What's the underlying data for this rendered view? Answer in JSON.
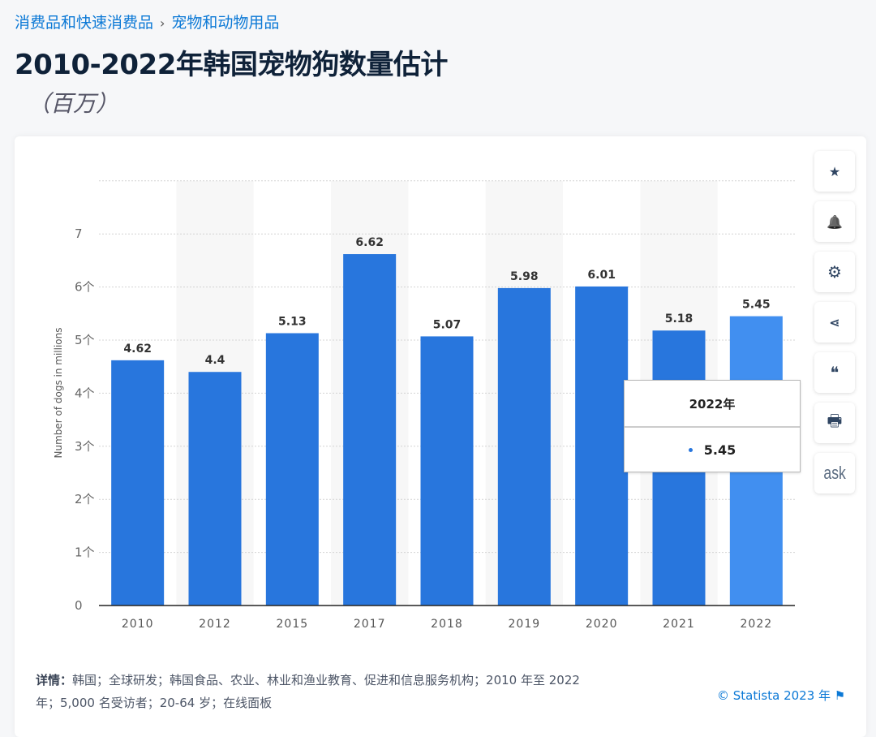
{
  "breadcrumb": {
    "items": [
      "消费品和快速消费品",
      "宠物和动物用品"
    ],
    "separator": "›"
  },
  "title": "2010-2022年韩国宠物狗数量估计",
  "subtitle": "（百万）",
  "chart_data": {
    "type": "bar",
    "categories": [
      "2010",
      "2012",
      "2015",
      "2017",
      "2018",
      "2019",
      "2020",
      "2021",
      "2022"
    ],
    "values": [
      4.62,
      4.4,
      5.13,
      6.62,
      5.07,
      5.98,
      6.01,
      5.18,
      5.45
    ],
    "ylabel": "Number of dogs in millions",
    "xlabel": "",
    "ylim": [
      0,
      8
    ],
    "yticks": [
      "0",
      "1个",
      "2个",
      "3个",
      "4个",
      "5个",
      "6个",
      "7"
    ],
    "grid": true,
    "bar_color": "#2876dd",
    "highlight_color": "#418ff0",
    "highlighted": "2022"
  },
  "tooltip": {
    "title": "2022年",
    "value": "5.45",
    "dot_color": "#2876dd"
  },
  "tools": [
    {
      "icon": "star-icon",
      "glyph": "★"
    },
    {
      "icon": "bell-icon",
      "glyph": "🔔"
    },
    {
      "icon": "gear-icon",
      "glyph": "⚙"
    },
    {
      "icon": "share-icon",
      "glyph": "⋖"
    },
    {
      "icon": "quote-icon",
      "glyph": "❝"
    },
    {
      "icon": "print-icon",
      "glyph": "🖶"
    },
    {
      "icon": "ask-icon",
      "glyph": "ask"
    }
  ],
  "footer": {
    "label": "详情：",
    "text": "韩国；全球研发；韩国食品、农业、林业和渔业教育、促进和信息服务机构；2010 年至 2022 年；5,000 名受访者；20-64 岁；在线面板",
    "copyright": "© Statista 2023 年 ⚑"
  }
}
